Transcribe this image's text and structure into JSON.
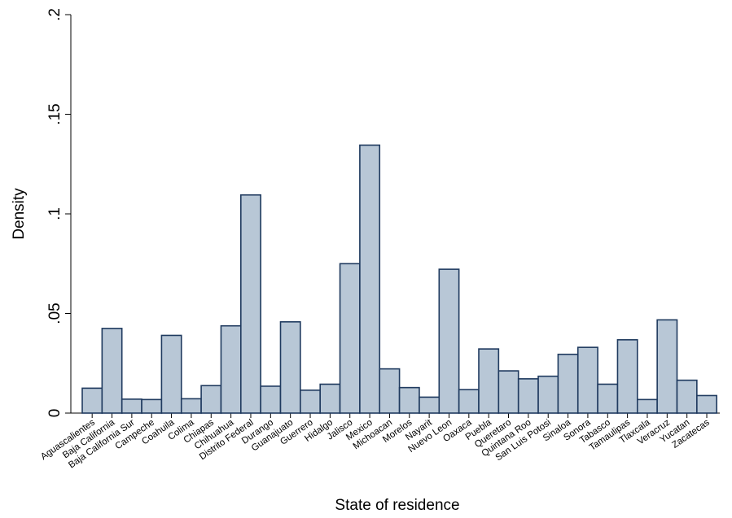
{
  "chart_data": {
    "type": "bar",
    "xlabel": "State of residence",
    "ylabel": "Density",
    "ylim": [
      0,
      0.2
    ],
    "yticks": [
      {
        "value": 0,
        "label": "0"
      },
      {
        "value": 0.05,
        "label": ".05"
      },
      {
        "value": 0.1,
        "label": ".1"
      },
      {
        "value": 0.15,
        "label": ".15"
      },
      {
        "value": 0.2,
        "label": ".2"
      }
    ],
    "categories": [
      "Aguascalientes",
      "Baja California",
      "Baja California Sur",
      "Campeche",
      "Coahuila",
      "Colima",
      "Chiapas",
      "Chihuahua",
      "Distrito Federal",
      "Durango",
      "Guanajuato",
      "Guerrero",
      "Hidalgo",
      "Jalisco",
      "Mexico",
      "Michoacan",
      "Morelos",
      "Nayarit",
      "Nuevo Leon",
      "Oaxaca",
      "Puebla",
      "Queretaro",
      "Quintana Roo",
      "San Luis Potosi",
      "Sinaloa",
      "Sonora",
      "Tabasco",
      "Tamaulipas",
      "Tlaxcala",
      "Veracruz",
      "Yucatan",
      "Zacatecas"
    ],
    "values": [
      0.0125,
      0.0425,
      0.007,
      0.0068,
      0.039,
      0.0072,
      0.0138,
      0.0438,
      0.1095,
      0.0135,
      0.0458,
      0.0115,
      0.0145,
      0.075,
      0.1345,
      0.0222,
      0.0128,
      0.008,
      0.0722,
      0.0118,
      0.0322,
      0.0212,
      0.0172,
      0.0185,
      0.0295,
      0.033,
      0.0145,
      0.0368,
      0.0068,
      0.0468,
      0.0165,
      0.0088
    ],
    "bar_fill": "#b8c7d6",
    "bar_stroke": "#1f3a5f",
    "grid": false,
    "legend": "none"
  }
}
